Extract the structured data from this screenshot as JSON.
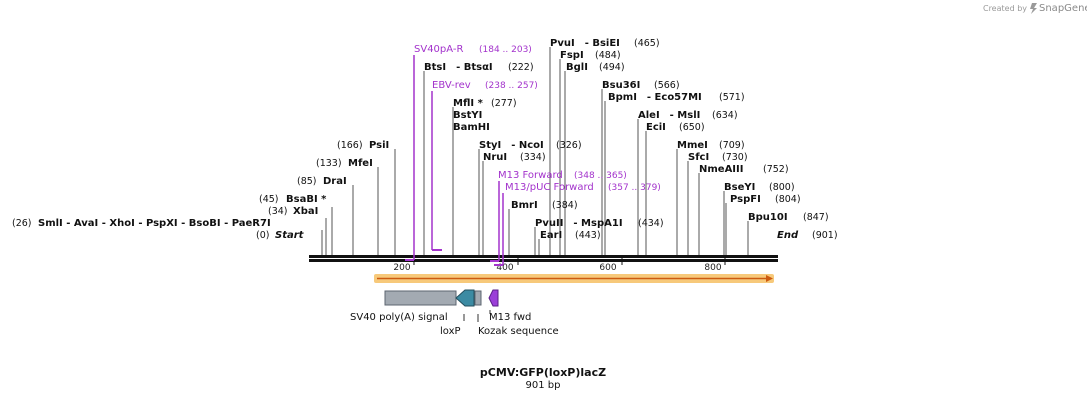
{
  "brand": {
    "created_by": "Created by",
    "name": "SnapGene"
  },
  "plasmid": {
    "name": "pCMV:GFP(loxP)lacZ",
    "length": "901 bp"
  },
  "ends": {
    "start": {
      "label": "Start",
      "pos": "(0)"
    },
    "end": {
      "label": "End",
      "pos": "(901)"
    }
  },
  "axis_ticks": [
    "200",
    "400",
    "600",
    "800"
  ],
  "site_row_26": [
    {
      "prefix": "",
      "name": "SmlI"
    },
    {
      "prefix": "- ",
      "name": "AvaI"
    },
    {
      "prefix": "- ",
      "name": "XhoI"
    },
    {
      "prefix": "- ",
      "name": "PspXI"
    },
    {
      "prefix": "- ",
      "name": "BsoBI"
    },
    {
      "prefix": "- ",
      "name": "PaeR7I"
    }
  ],
  "site_row_26_pos": "(26)",
  "sites": [
    {
      "name": "XbaI",
      "pos": "(34)"
    },
    {
      "name": "BsaBI *",
      "pos": "(45)"
    },
    {
      "name": "DraI",
      "pos": "(85)"
    },
    {
      "name": "MfeI",
      "pos": "(133)"
    },
    {
      "name": "PsiI",
      "pos": "(166)"
    },
    {
      "name": "BtsI",
      "name2": "- BtsαI",
      "pos": "(222)"
    },
    {
      "name": "MflI *",
      "pos": "(277)"
    },
    {
      "name": "BstYI"
    },
    {
      "name": "BamHI"
    },
    {
      "name": "StyI",
      "name2": "- NcoI",
      "pos": "(326)"
    },
    {
      "name": "NruI",
      "pos": "(334)"
    },
    {
      "name": "BmrI",
      "pos": "(384)"
    },
    {
      "name": "PvuII",
      "name2": "- MspA1I",
      "pos": "(434)"
    },
    {
      "name": "EarI",
      "pos": "(443)"
    },
    {
      "name": "PvuI",
      "name2": "- BsiEI",
      "pos": "(465)"
    },
    {
      "name": "FspI",
      "pos": "(484)"
    },
    {
      "name": "BglI",
      "pos": "(494)"
    },
    {
      "name": "Bsu36I",
      "pos": "(566)"
    },
    {
      "name": "BpmI",
      "name2": "- Eco57MI",
      "pos": "(571)"
    },
    {
      "name": "AleI",
      "name2": "- MslI",
      "pos": "(634)"
    },
    {
      "name": "EciI",
      "pos": "(650)"
    },
    {
      "name": "MmeI",
      "pos": "(709)"
    },
    {
      "name": "SfcI",
      "pos": "(730)"
    },
    {
      "name": "NmeAIII",
      "pos": "(752)"
    },
    {
      "name": "BseYI",
      "pos": "(800)"
    },
    {
      "name": "PspFI",
      "pos": "(804)"
    },
    {
      "name": "Bpu10I",
      "pos": "(847)"
    }
  ],
  "primers": [
    {
      "name": "SV40pA-R",
      "range": "(184 .. 203)"
    },
    {
      "name": "EBV-rev",
      "range": "(238 .. 257)"
    },
    {
      "name": "M13 Forward",
      "range": "(348 .. 365)"
    },
    {
      "name": "M13/pUC Forward",
      "range": "(357 .. 379)"
    }
  ],
  "features": [
    {
      "name": "SV40 poly(A) signal"
    },
    {
      "name": "loxP"
    },
    {
      "name": "M13 fwd"
    },
    {
      "name": "Kozak sequence"
    }
  ],
  "colors": {
    "primer": "#a333cc",
    "orf_band": "#f7c97a",
    "orf_arrow": "#cc5a10",
    "polyA": "#a3aab2",
    "loxP": "#3c8ba3",
    "m13": "#9b3fd8",
    "backbone": "#111111"
  }
}
